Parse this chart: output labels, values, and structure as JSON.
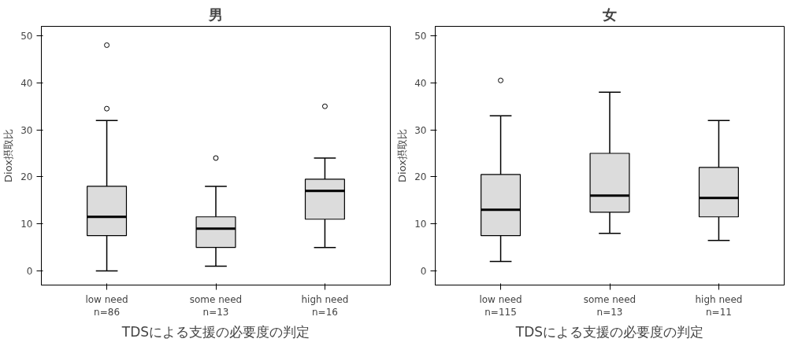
{
  "chart_data": [
    {
      "type": "box",
      "title": "男",
      "xlabel": "TDSによる支援の必要度の判定",
      "ylabel": "Diox摂取比",
      "categories": [
        "low need\nn=86",
        "some need\nn=13",
        "high need\nn=16"
      ],
      "color": "#dcdcdc",
      "ylim": [
        -3,
        52
      ],
      "yticks": [
        0,
        10,
        20,
        30,
        40,
        50
      ],
      "grid": false,
      "boxes": [
        {
          "low": 0,
          "q1": 7.5,
          "median": 11.5,
          "q3": 18,
          "high": 32,
          "outliers": [
            34.5,
            48
          ]
        },
        {
          "low": 1,
          "q1": 5,
          "median": 9,
          "q3": 11.5,
          "high": 18,
          "outliers": [
            24
          ]
        },
        {
          "low": 5,
          "q1": 11,
          "median": 17,
          "q3": 19.5,
          "high": 24,
          "outliers": [
            35
          ]
        }
      ]
    },
    {
      "type": "box",
      "title": "女",
      "xlabel": "TDSによる支援の必要度の判定",
      "ylabel": "Diox摂取比",
      "categories": [
        "low need\nn=115",
        "some need\nn=13",
        "high need\nn=11"
      ],
      "color": "#dcdcdc",
      "ylim": [
        -3,
        52
      ],
      "yticks": [
        0,
        10,
        20,
        30,
        40,
        50
      ],
      "grid": false,
      "boxes": [
        {
          "low": 2,
          "q1": 7.5,
          "median": 13,
          "q3": 20.5,
          "high": 33,
          "outliers": [
            40.5
          ]
        },
        {
          "low": 8,
          "q1": 12.5,
          "median": 16,
          "q3": 25,
          "high": 38
        },
        {
          "low": 6.5,
          "q1": 11.5,
          "median": 15.5,
          "q3": 22,
          "high": 32
        }
      ]
    }
  ]
}
